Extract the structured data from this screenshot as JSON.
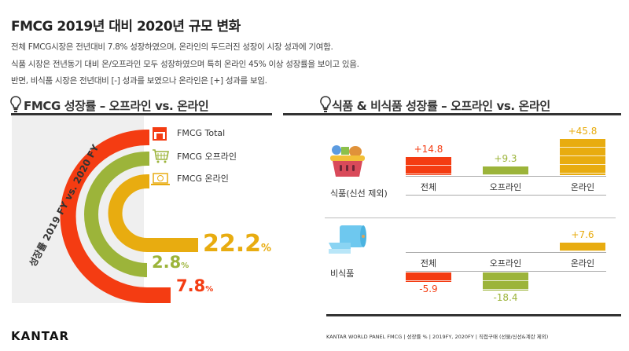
{
  "title": "FMCG 2019년 대비 2020년 규모 변화",
  "description": [
    "전체 FMCG시장은 전년대비 7.8% 성장하였으며, 온라인의 두드러진 성장이 시장 성과에 기여함.",
    "식품 시장은 전년동기 대비 온/오프라인 모두 성장하였으며 특히 온라인 45% 이상 성장률을 보이고 있음.",
    "반면, 비식품 시장은 전년대비 [-] 성과를 보였으나 온라인은 [+] 성과를 보임."
  ],
  "chart_data": [
    {
      "type": "bar",
      "title": "FMCG 성장률 – 오프라인 vs. 온라인",
      "ylabel": "성장률 2019 FY vs. 2020 FY",
      "categories": [
        "FMCG Total",
        "FMCG 오프라인",
        "FMCG 온라인"
      ],
      "values": [
        7.8,
        2.8,
        22.2
      ],
      "value_labels": [
        "7.8",
        "2.8",
        "22.2"
      ],
      "unit": "%",
      "colors": [
        "#f43c12",
        "#9cb43a",
        "#e8ac10"
      ],
      "legend_icons": [
        "store-icon",
        "cart-icon",
        "laptop-icon"
      ]
    },
    {
      "type": "bar",
      "title": "식품 & 비식품 성장률 – 오프라인 vs. 온라인",
      "categories": [
        "전체",
        "오프라인",
        "온라인"
      ],
      "colors": [
        "#f43c12",
        "#9cb43a",
        "#e8ac10"
      ],
      "series": [
        {
          "name": "식품(신선 제외)",
          "icon": "grocery-basket-icon",
          "values": [
            14.8,
            9.3,
            45.8
          ],
          "labels": [
            "+14.8",
            "+9.3",
            "+45.8"
          ]
        },
        {
          "name": "비식품",
          "icon": "paper-towel-icon",
          "values": [
            -5.9,
            -18.4,
            7.6
          ],
          "labels": [
            "-5.9",
            "-18.4",
            "+7.6"
          ]
        }
      ]
    }
  ],
  "footer": {
    "logo": "KANTAR",
    "source": "KANTAR WORLD PANEL FMCG | 성장률 % | 2019FY, 2020FY | 직접구매 (선물/신선&계란 제외)"
  }
}
